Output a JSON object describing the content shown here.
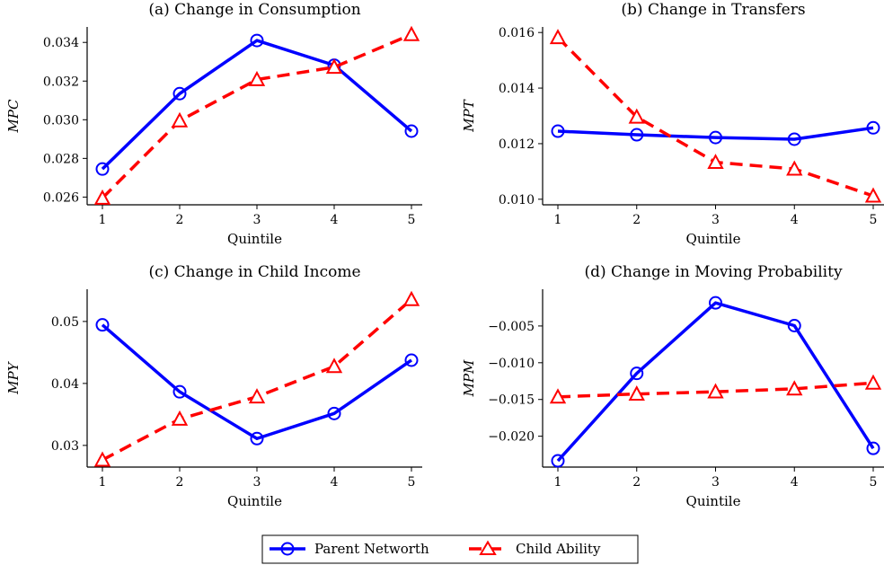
{
  "series_meta": [
    {
      "name": "Parent Networth",
      "color": "#0000ff",
      "dash": "",
      "marker": "circle"
    },
    {
      "name": "Child Ability",
      "color": "#ff0000",
      "dash": "14,8",
      "marker": "triangle"
    }
  ],
  "chart_data": [
    {
      "type": "line",
      "title": "(a) Change in Consumption",
      "xlabel": "Quintile",
      "ylabel": "MPC",
      "x": [
        1,
        2,
        3,
        4,
        5
      ],
      "yticks": [
        "0.026",
        "0.028",
        "0.030",
        "0.032",
        "0.034"
      ],
      "ylim": [
        0.0256,
        0.0348
      ],
      "series": [
        {
          "name": "Parent Networth",
          "values": [
            0.02745,
            0.03135,
            0.0341,
            0.03282,
            0.02941
          ]
        },
        {
          "name": "Child Ability",
          "values": [
            0.02595,
            0.02995,
            0.03208,
            0.03272,
            0.03441
          ]
        }
      ]
    },
    {
      "type": "line",
      "title": "(b) Change in Transfers",
      "xlabel": "Quintile",
      "ylabel": "MPT",
      "x": [
        1,
        2,
        3,
        4,
        5
      ],
      "yticks": [
        "0.010",
        "0.012",
        "0.014",
        "0.016"
      ],
      "ylim": [
        0.0098,
        0.0162
      ],
      "series": [
        {
          "name": "Parent Networth",
          "values": [
            0.01245,
            0.01232,
            0.01222,
            0.01216,
            0.01257
          ]
        },
        {
          "name": "Child Ability",
          "values": [
            0.01582,
            0.01296,
            0.01133,
            0.01109,
            0.01012
          ]
        }
      ]
    },
    {
      "type": "line",
      "title": "(c) Change in Child Income",
      "xlabel": "Quintile",
      "ylabel": "MPY",
      "x": [
        1,
        2,
        3,
        4,
        5
      ],
      "yticks": [
        "0.03",
        "0.04",
        "0.05"
      ],
      "ylim": [
        0.0265,
        0.0552
      ],
      "series": [
        {
          "name": "Parent Networth",
          "values": [
            0.04945,
            0.03865,
            0.0311,
            0.03515,
            0.04375
          ]
        },
        {
          "name": "Child Ability",
          "values": [
            0.02765,
            0.03425,
            0.03785,
            0.04275,
            0.05355
          ]
        }
      ]
    },
    {
      "type": "line",
      "title": "(d) Change in Moving Probability",
      "xlabel": "Quintile",
      "ylabel": "MPM",
      "x": [
        1,
        2,
        3,
        4,
        5
      ],
      "yticks": [
        "−0.020",
        "−0.015",
        "−0.010",
        "−0.005"
      ],
      "ytick_values": [
        -0.02,
        -0.015,
        -0.01,
        -0.005
      ],
      "ylim": [
        -0.0242,
        0.0
      ],
      "series": [
        {
          "name": "Parent Networth",
          "values": [
            -0.02335,
            -0.01145,
            -0.00185,
            -0.00495,
            -0.02165
          ]
        },
        {
          "name": "Child Ability",
          "values": [
            -0.01465,
            -0.01425,
            -0.01395,
            -0.01355,
            -0.01275
          ]
        }
      ]
    }
  ],
  "legend": {
    "entries": [
      "Parent Networth",
      "Child Ability"
    ],
    "placement": "bottom-center"
  }
}
